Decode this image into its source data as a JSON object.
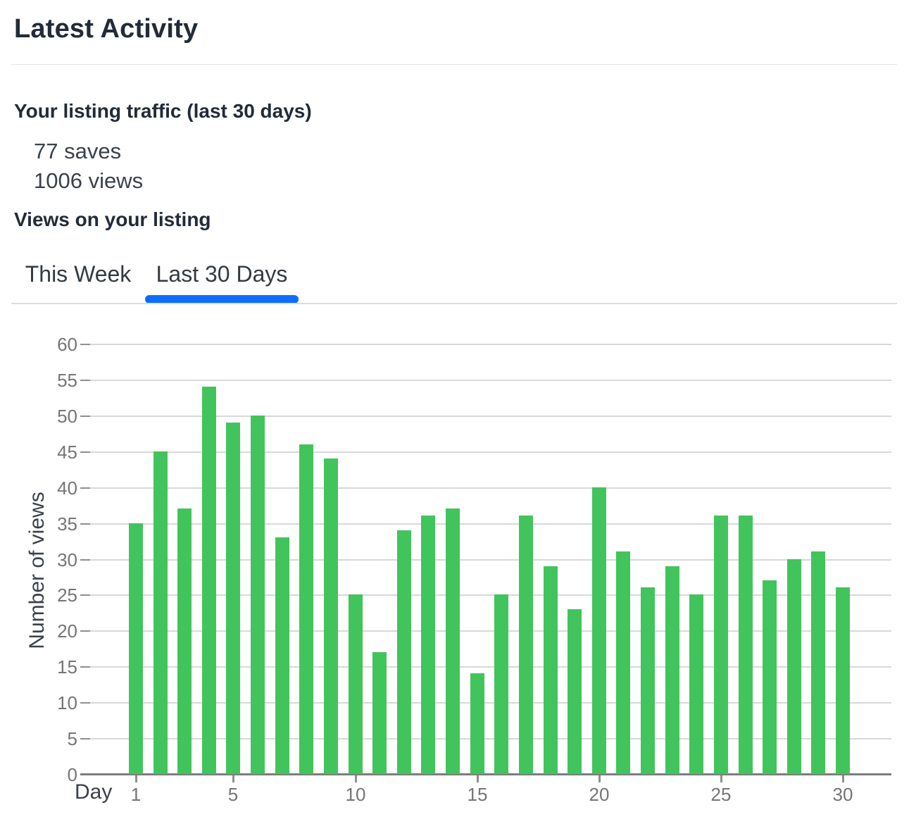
{
  "page": {
    "title": "Latest Activity"
  },
  "traffic": {
    "heading": "Your listing traffic (last 30 days)",
    "saves": "77 saves",
    "views": "1006 views"
  },
  "views_section": {
    "heading": "Views on your listing"
  },
  "tabs": [
    {
      "label": "This Week",
      "active": false
    },
    {
      "label": "Last 30 Days",
      "active": true
    }
  ],
  "colors": {
    "bar_green": "#42c45c",
    "active_tab_underline": "#0d6efd",
    "gridline": "#d9d9d9",
    "axis": "#7d7d7d",
    "tick_label": "#757575"
  },
  "chart_data": {
    "type": "bar",
    "title": "",
    "xlabel": "Day",
    "ylabel": "Number of views",
    "x": [
      1,
      2,
      3,
      4,
      5,
      6,
      7,
      8,
      9,
      10,
      11,
      12,
      13,
      14,
      15,
      16,
      17,
      18,
      19,
      20,
      21,
      22,
      23,
      24,
      25,
      26,
      27,
      28,
      29,
      30
    ],
    "values": [
      35,
      45,
      37,
      54,
      49,
      50,
      33,
      46,
      44,
      25,
      17,
      34,
      36,
      37,
      14,
      25,
      36,
      29,
      23,
      40,
      31,
      26,
      29,
      25,
      36,
      36,
      27,
      30,
      31,
      26
    ],
    "ylim": [
      0,
      60
    ],
    "y_ticks": [
      0,
      5,
      10,
      15,
      20,
      25,
      30,
      35,
      40,
      45,
      50,
      55,
      60
    ],
    "x_ticks": [
      1,
      5,
      10,
      15,
      20,
      25,
      30
    ],
    "grid": "horizontal",
    "legend": "none",
    "bar_color": "#42c45c"
  }
}
